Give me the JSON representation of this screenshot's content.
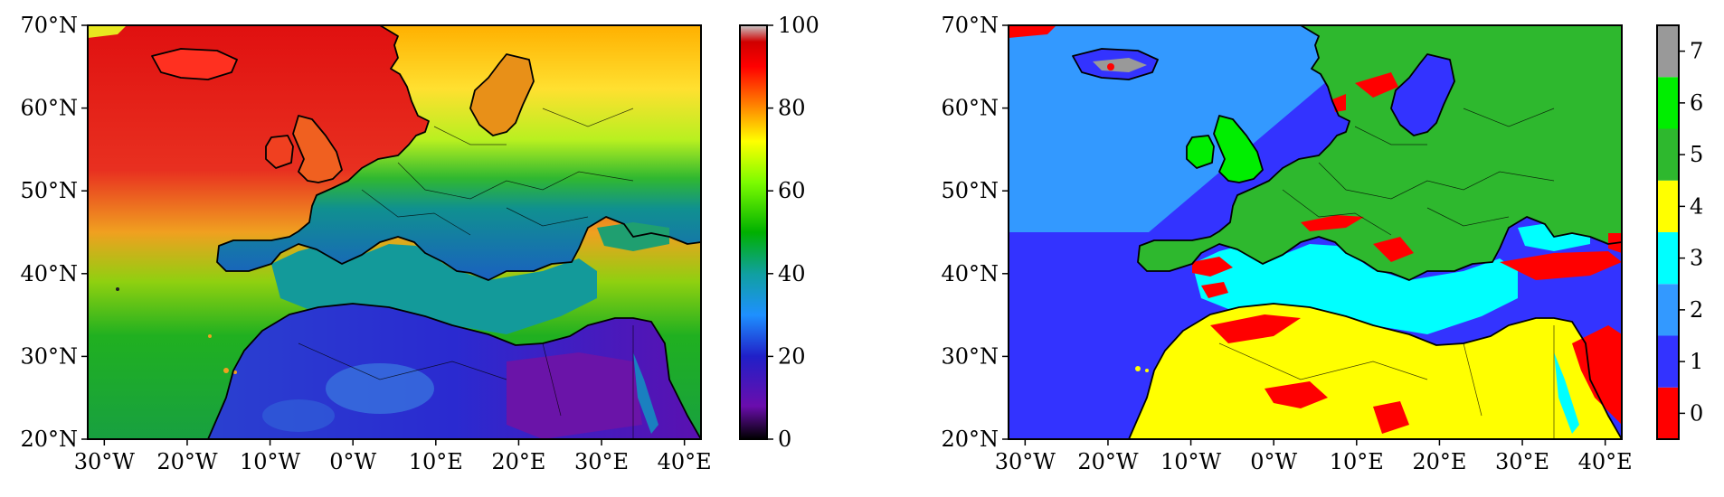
{
  "left_map": {
    "lat_ticks": [
      "70°N",
      "60°N",
      "50°N",
      "40°N",
      "30°N",
      "20°N"
    ],
    "lon_ticks": [
      "30°W",
      "20°W",
      "10°W",
      "0°W",
      "10°E",
      "20°E",
      "30°E",
      "40°E"
    ],
    "colorbar": {
      "type": "continuous",
      "min": 0,
      "max": 100,
      "ticks": [
        "0",
        "20",
        "40",
        "60",
        "80",
        "100"
      ],
      "colors": [
        "#000000",
        "#6a0dad",
        "#2020c8",
        "#1e90ff",
        "#10a0a0",
        "#00c000",
        "#7cfc00",
        "#ffff00",
        "#ff8c00",
        "#ff0000",
        "#d00000",
        "#c0c0c0"
      ]
    }
  },
  "right_map": {
    "lat_ticks": [
      "70°N",
      "60°N",
      "50°N",
      "40°N",
      "30°N",
      "20°N"
    ],
    "lon_ticks": [
      "30°W",
      "20°W",
      "10°W",
      "0°W",
      "10°E",
      "20°E",
      "30°E",
      "40°E"
    ],
    "colorbar": {
      "type": "discrete",
      "ticks": [
        "0",
        "1",
        "2",
        "3",
        "4",
        "5",
        "6",
        "7"
      ],
      "colors": [
        "#ff0000",
        "#3333ff",
        "#3399ff",
        "#00ffff",
        "#ffff00",
        "#2eb82e",
        "#00ee00",
        "#999999"
      ]
    }
  }
}
